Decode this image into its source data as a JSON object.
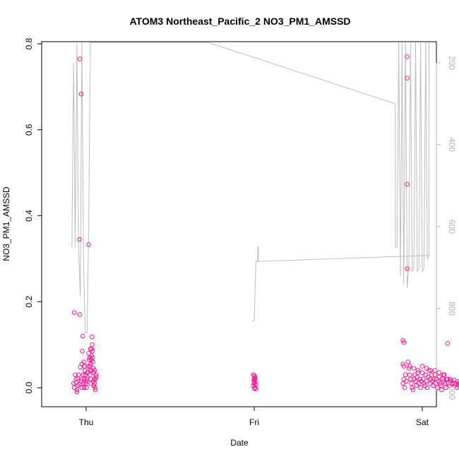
{
  "chart_data": {
    "type": "scatter",
    "title": "ATOM3 Northeast_Pacific_2 NO3_PM1_AMSSD",
    "xlabel": "Date",
    "ylabel": "NO3_PM1_AMSSD",
    "x_tick_labels": [
      "Thu",
      "Fri",
      "Sat"
    ],
    "y_ticks": [
      0.0,
      0.2,
      0.4,
      0.6,
      0.8
    ],
    "y_tick_labels": [
      "0.0",
      "0.2",
      "0.4",
      "0.6",
      "0.8"
    ],
    "ylim": [
      -0.045,
      0.8
    ],
    "y2_ticks": [
      200,
      400,
      600,
      800,
      1000
    ],
    "y2_tick_labels": [
      "200",
      "400",
      "600",
      "800",
      "1000"
    ],
    "y2_reversed": true,
    "colors": {
      "points": "#ff1493",
      "line": "#bebebe",
      "right_axis": "#b3b3b3"
    },
    "series": [
      {
        "type": "scatter",
        "points": [
          [
            -0.14,
            0.175
          ],
          [
            -0.12,
            0.02
          ],
          [
            -0.1,
            0.005
          ],
          [
            -0.13,
            0.03
          ],
          [
            -0.11,
            -0.01
          ],
          [
            -0.09,
            0.03
          ],
          [
            -0.08,
            0.008
          ],
          [
            -0.15,
            0.01
          ],
          [
            -0.14,
            0.0
          ],
          [
            -0.12,
            0.012
          ],
          [
            -0.1,
            0.022
          ],
          [
            -0.07,
            0.048
          ],
          [
            -0.06,
            0.015
          ],
          [
            -0.05,
            0.0
          ],
          [
            -0.11,
            -0.005
          ],
          [
            -0.08,
            0.345
          ],
          [
            -0.076,
            0.765
          ],
          [
            -0.076,
            0.17
          ],
          [
            -0.06,
            0.683
          ],
          [
            -0.04,
            0.12
          ],
          [
            -0.03,
            0.06
          ],
          [
            -0.045,
            0.085
          ],
          [
            -0.02,
            0.05
          ],
          [
            -0.035,
            0.03
          ],
          [
            -0.03,
            0.01
          ],
          [
            -0.025,
            0.0
          ],
          [
            -0.02,
            0.02
          ],
          [
            -0.015,
            0.04
          ],
          [
            -0.05,
            0.055
          ],
          [
            -0.055,
            0.02
          ],
          [
            -0.01,
            0.03
          ],
          [
            0.0,
            0.015
          ],
          [
            0.01,
            0.02
          ],
          [
            0.005,
            0.0
          ],
          [
            -0.005,
            0.01
          ],
          [
            0.015,
            0.035
          ],
          [
            0.02,
            0.05
          ],
          [
            0.03,
            0.08
          ],
          [
            0.035,
            0.065
          ],
          [
            0.04,
            0.05
          ],
          [
            0.045,
            0.03
          ],
          [
            0.05,
            0.02
          ],
          [
            0.055,
            0.01
          ],
          [
            0.06,
            0.04
          ],
          [
            0.065,
            0.09
          ],
          [
            0.07,
            0.118
          ],
          [
            0.072,
            0.1
          ],
          [
            0.075,
            0.07
          ],
          [
            0.08,
            0.06
          ],
          [
            0.085,
            0.045
          ],
          [
            0.09,
            0.035
          ],
          [
            0.095,
            0.02
          ],
          [
            0.1,
            0.01
          ],
          [
            0.105,
            0.0
          ],
          [
            0.11,
            -0.005
          ],
          [
            0.115,
            0.03
          ],
          [
            0.12,
            0.025
          ],
          [
            0.03,
            0.333
          ],
          [
            0.04,
            0.07
          ],
          [
            0.05,
            0.09
          ],
          [
            0.06,
            0.065
          ],
          [
            0.045,
            0.04
          ],
          [
            0.055,
            0.055
          ],
          [
            0.065,
            0.075
          ],
          [
            0.075,
            0.085
          ],
          [
            0.085,
            0.015
          ],
          [
            0.1,
            0.04
          ],
          [
            0.11,
            0.02
          ],
          [
            0.09,
            0.005
          ],
          [
            1.99,
            0.03
          ],
          [
            2.0,
            0.028
          ],
          [
            2.0,
            0.02
          ],
          [
            2.01,
            0.015
          ],
          [
            2.0,
            0.01
          ],
          [
            1.99,
            0.005
          ],
          [
            2.01,
            0.0
          ],
          [
            2.02,
            -0.003
          ],
          [
            2.0,
            0.012
          ],
          [
            2.01,
            0.022
          ],
          [
            1.995,
            0.018
          ],
          [
            2.02,
            0.008
          ],
          [
            2.01,
            0.025
          ],
          [
            2.0,
            -0.002
          ],
          [
            3.77,
            0.11
          ],
          [
            3.78,
            0.105
          ],
          [
            3.77,
            0.055
          ],
          [
            3.78,
            0.05
          ],
          [
            3.78,
            0.02
          ],
          [
            3.77,
            0.01
          ],
          [
            3.79,
            0.0
          ],
          [
            3.8,
            0.03
          ],
          [
            3.81,
            0.015
          ],
          [
            3.82,
            0.77
          ],
          [
            3.82,
            0.72
          ],
          [
            3.82,
            0.473
          ],
          [
            3.82,
            0.277
          ],
          [
            3.83,
            0.06
          ],
          [
            3.84,
            0.045
          ],
          [
            3.85,
            0.03
          ],
          [
            3.86,
            0.02
          ],
          [
            3.87,
            0.01
          ],
          [
            3.88,
            0.0
          ],
          [
            3.89,
            -0.005
          ],
          [
            3.9,
            0.02
          ],
          [
            3.91,
            0.03
          ],
          [
            3.92,
            0.015
          ],
          [
            3.93,
            0.005
          ],
          [
            3.94,
            0.025
          ],
          [
            3.95,
            0.04
          ],
          [
            3.96,
            0.01
          ],
          [
            3.97,
            0.02
          ],
          [
            3.98,
            0.0
          ],
          [
            3.99,
            0.015
          ],
          [
            4.0,
            0.035
          ],
          [
            4.01,
            0.02
          ],
          [
            4.02,
            0.01
          ],
          [
            4.03,
            0.005
          ],
          [
            4.04,
            0.03
          ],
          [
            4.05,
            0.015
          ],
          [
            4.06,
            0.0
          ],
          [
            4.07,
            0.025
          ],
          [
            4.08,
            0.04
          ],
          [
            4.09,
            0.02
          ],
          [
            4.1,
            0.01
          ],
          [
            4.11,
            0.03
          ],
          [
            4.12,
            0.015
          ],
          [
            4.13,
            0.005
          ],
          [
            4.14,
            0.02
          ],
          [
            4.15,
            0.03
          ],
          [
            4.16,
            0.01
          ],
          [
            4.17,
            0.02
          ],
          [
            4.18,
            0.0
          ],
          [
            4.19,
            0.015
          ],
          [
            4.2,
            0.025
          ],
          [
            4.21,
            0.01
          ],
          [
            4.22,
            0.005
          ],
          [
            4.23,
            -0.005
          ],
          [
            4.24,
            0.02
          ],
          [
            4.25,
            0.015
          ],
          [
            4.26,
            0.03
          ],
          [
            4.27,
            0.01
          ],
          [
            4.28,
            0.0
          ],
          [
            4.29,
            0.02
          ],
          [
            4.3,
            0.103
          ],
          [
            4.31,
            0.01
          ],
          [
            4.32,
            0.005
          ],
          [
            4.33,
            0.02
          ],
          [
            4.34,
            0.015
          ],
          [
            4.35,
            0.01
          ],
          [
            4.36,
            0.008
          ],
          [
            4.37,
            0.012
          ],
          [
            4.38,
            0.018
          ],
          [
            4.39,
            0.005
          ],
          [
            4.4,
            0.01
          ],
          [
            4.41,
            0.0
          ],
          [
            4.42,
            0.015
          ],
          [
            4.43,
            0.008
          ],
          [
            4.44,
            0.012
          ],
          [
            4.45,
            0.006
          ],
          [
            4.46,
            0.01
          ],
          [
            4.47,
            0.004
          ],
          [
            4.48,
            0.009
          ],
          [
            3.85,
            0.05
          ],
          [
            3.9,
            0.045
          ],
          [
            3.95,
            0.035
          ],
          [
            4.0,
            0.05
          ],
          [
            4.05,
            0.045
          ],
          [
            4.1,
            0.04
          ],
          [
            4.15,
            0.04
          ],
          [
            4.2,
            0.035
          ],
          [
            4.25,
            0.03
          ],
          [
            4.3,
            0.02
          ]
        ]
      },
      {
        "type": "line",
        "name_axis": "right",
        "points": [
          [
            -0.17,
            650
          ],
          [
            -0.15,
            200
          ],
          [
            -0.13,
            650
          ],
          [
            -0.11,
            150
          ],
          [
            -0.09,
            650
          ],
          [
            -0.07,
            770
          ],
          [
            -0.05,
            150
          ],
          [
            -0.03,
            700
          ],
          [
            -0.01,
            860
          ],
          [
            0.01,
            860
          ],
          [
            0.03,
            600
          ],
          [
            0.05,
            150
          ],
          [
            0.08,
            150
          ],
          [
            1.45,
            150
          ],
          [
            3.68,
            300
          ],
          [
            3.68,
            650
          ],
          [
            3.7,
            650
          ],
          [
            3.72,
            150
          ],
          [
            3.74,
            720
          ],
          [
            3.76,
            150
          ],
          [
            3.78,
            740
          ],
          [
            3.8,
            150
          ],
          [
            3.82,
            750
          ],
          [
            3.84,
            700
          ],
          [
            3.86,
            150
          ],
          [
            3.88,
            710
          ],
          [
            3.9,
            700
          ],
          [
            3.92,
            150
          ],
          [
            3.94,
            710
          ],
          [
            3.96,
            700
          ],
          [
            3.98,
            150
          ],
          [
            4.0,
            710
          ],
          [
            4.02,
            700
          ],
          [
            4.04,
            150
          ],
          [
            4.06,
            680
          ],
          [
            4.08,
            670
          ],
          [
            4.08,
            150
          ]
        ],
        "segment_right": [
          [
            1.98,
            830
          ],
          [
            2.0,
            830
          ],
          [
            2.02,
            685
          ],
          [
            2.04,
            685
          ],
          [
            2.04,
            650
          ],
          [
            2.05,
            650
          ],
          [
            2.05,
            685
          ],
          [
            4.08,
            670
          ]
        ]
      }
    ]
  }
}
